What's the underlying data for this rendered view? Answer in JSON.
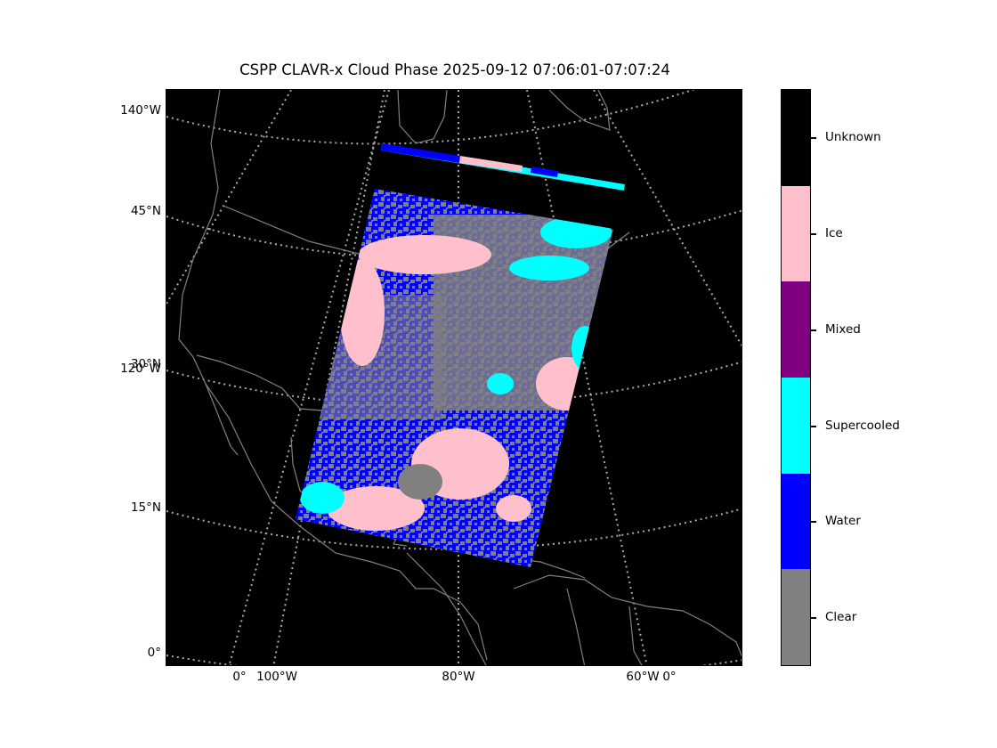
{
  "title": "CSPP CLAVR-x Cloud Phase 2025-09-12 07:06:01-07:07:24",
  "lat_labels": [
    "140°W",
    "45°N",
    "30°N",
    "120°W",
    "15°N",
    "0°"
  ],
  "lon_labels": [
    "0°",
    "100°W",
    "80°W",
    "60°W",
    "0°"
  ],
  "colorbar": {
    "categories": [
      {
        "label": "Unknown",
        "color": "#000000"
      },
      {
        "label": "Ice",
        "color": "#ffc0cb"
      },
      {
        "label": "Mixed",
        "color": "#800080"
      },
      {
        "label": "Supercooled",
        "color": "#00ffff"
      },
      {
        "label": "Water",
        "color": "#0000ff"
      },
      {
        "label": "Clear",
        "color": "#808080"
      }
    ]
  },
  "colors": {
    "background": "#000000",
    "coastline": "#808080",
    "gridline": "#aaaaaa"
  }
}
